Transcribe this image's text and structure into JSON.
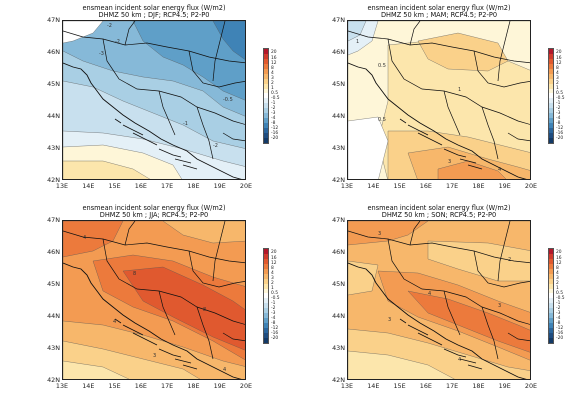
{
  "title_line1": "ensmean incident solar energy flux (W/m2)",
  "lat_ticks": [
    "47N",
    "46N",
    "45N",
    "44N",
    "43N",
    "42N"
  ],
  "lon_ticks": [
    "13E",
    "14E",
    "15E",
    "16E",
    "17E",
    "18E",
    "19E",
    "20E"
  ],
  "colorbar": {
    "labels": [
      "20",
      "16",
      "12",
      "8",
      "4",
      "3",
      "2",
      "1",
      "0.5",
      "-0.5",
      "-1",
      "-2",
      "-3",
      "-4",
      "-8",
      "-12",
      "-16",
      "-20"
    ],
    "colors": [
      "#b2182b",
      "#cf3a2c",
      "#e0592f",
      "#ec7a3c",
      "#f39b52",
      "#f7b76b",
      "#fad18a",
      "#fce6ac",
      "#fef6d8",
      "#ffffff",
      "#e4f0f7",
      "#c8e0ee",
      "#a9cfe4",
      "#86b9d8",
      "#5f9fc8",
      "#3f83b6",
      "#2a659c",
      "#1f4d80",
      "#133a67"
    ]
  },
  "panels": [
    {
      "id": "djf",
      "subtitle": "DHMZ 50 km ; DJF; RCP4.5; P2-P0",
      "contour_labels": [
        "-2",
        "-2",
        "-3",
        "-0.5",
        "-1",
        "-2"
      ]
    },
    {
      "id": "mam",
      "subtitle": "DHMZ 50 km ; MAM; RCP4.5; P2-P0",
      "contour_labels": [
        "1",
        "0.5",
        "1",
        "0.5",
        "3",
        "4"
      ]
    },
    {
      "id": "jja",
      "subtitle": "DHMZ 50 km ; JJA; RCP4.5; P2-P0",
      "contour_labels": [
        "4",
        "8",
        "8",
        "4",
        "3",
        "4"
      ]
    },
    {
      "id": "son",
      "subtitle": "DHMZ 50 km ; SON; RCP4.5; P2-P0",
      "contour_labels": [
        "3",
        "4",
        "3",
        "3",
        "4",
        "2"
      ]
    }
  ]
}
